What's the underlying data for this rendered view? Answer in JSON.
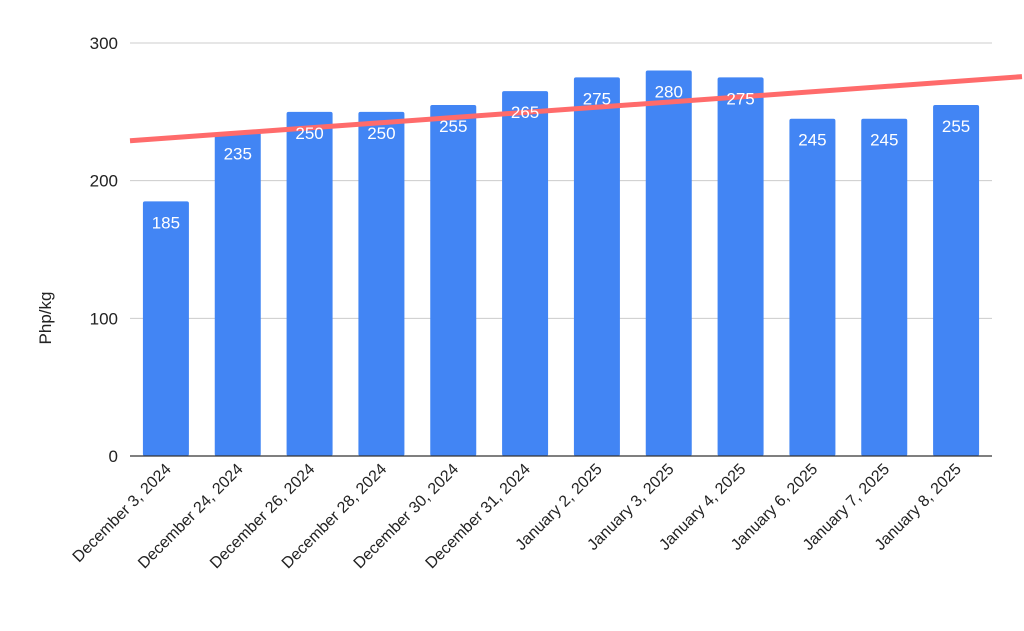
{
  "chart_data": {
    "type": "bar",
    "title": "",
    "xlabel": "",
    "ylabel": "Php/kg",
    "ylim": [
      0,
      300
    ],
    "yticks": [
      0,
      100,
      200,
      300
    ],
    "grid": true,
    "legend": "none",
    "categories": [
      "December 3, 2024",
      "December 24, 2024",
      "December 26, 2024",
      "December 28, 2024",
      "December 30, 2024",
      "December 31, 2024",
      "January 2, 2025",
      "January 3, 2025",
      "January 4, 2025",
      "January 6, 2025",
      "January 7, 2025",
      "January 8, 2025"
    ],
    "series": [
      {
        "values": [
          185,
          235,
          250,
          250,
          255,
          265,
          275,
          280,
          275,
          245,
          245,
          255
        ],
        "color": "#4285f4",
        "data_labels": [
          "185",
          "235",
          "250",
          "250",
          "255",
          "265",
          "275",
          "280",
          "275",
          "245",
          "245",
          "255"
        ]
      }
    ],
    "trendline": {
      "type": "linear",
      "color": "#ff6b6b",
      "start_value": 229,
      "end_value": 274
    }
  }
}
